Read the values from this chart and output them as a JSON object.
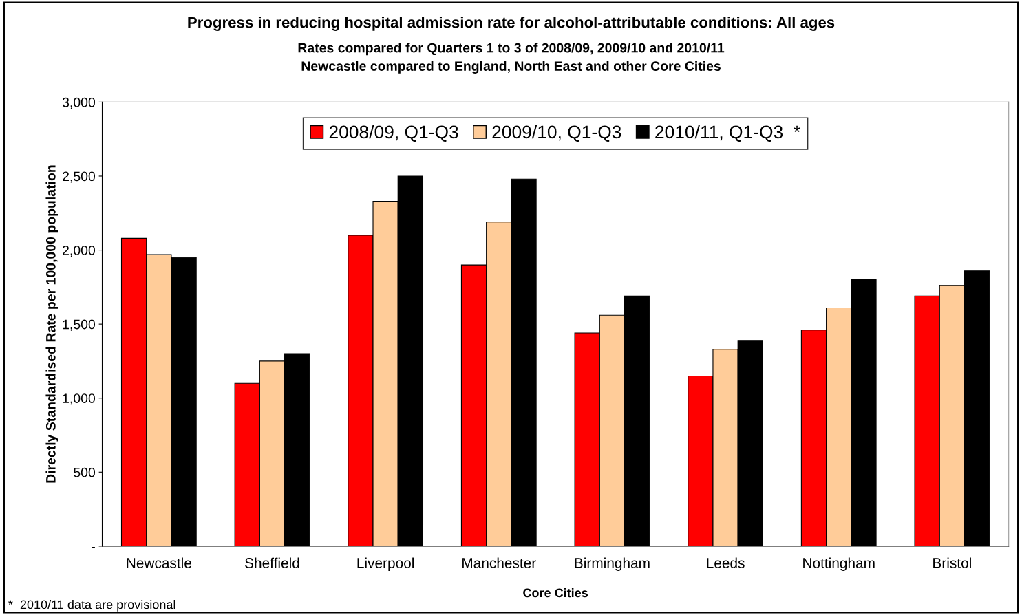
{
  "chart_data": {
    "type": "bar",
    "title": "Progress in reducing hospital admission rate for alcohol-attributable conditions: All ages",
    "subtitle": "Rates compared for Quarters 1 to 3 of 2008/09, 2009/10 and 2010/11\nNewcastle compared to England, North East and other Core Cities",
    "xlabel": "Core Cities",
    "ylabel": "Directly Standardised Rate per 100,000 population",
    "categories": [
      "Newcastle",
      "Sheffield",
      "Liverpool",
      "Manchester",
      "Birmingham",
      "Leeds",
      "Nottingham",
      "Bristol"
    ],
    "series": [
      {
        "name": "2008/09, Q1-Q3",
        "color": "#ff0000",
        "values": [
          2080,
          1100,
          2100,
          1900,
          1440,
          1150,
          1460,
          1690
        ]
      },
      {
        "name": "2009/10, Q1-Q3",
        "color": "#ffcc99",
        "values": [
          1970,
          1250,
          2330,
          2190,
          1560,
          1330,
          1610,
          1760
        ]
      },
      {
        "name": "2010/11, Q1-Q3  *",
        "color": "#000000",
        "values": [
          1950,
          1300,
          2500,
          2480,
          1690,
          1390,
          1800,
          1860
        ]
      }
    ],
    "ylim": [
      0,
      3000
    ],
    "yticks": [
      {
        "value": 0,
        "label": "-"
      },
      {
        "value": 500,
        "label": "500"
      },
      {
        "value": 1000,
        "label": "1,000"
      },
      {
        "value": 1500,
        "label": "1,500"
      },
      {
        "value": 2000,
        "label": "2,000"
      },
      {
        "value": 2500,
        "label": "2,500"
      },
      {
        "value": 3000,
        "label": "3,000"
      }
    ],
    "grid": false,
    "legend": "top",
    "annotations": [
      "*  2010/11 data are provisional"
    ]
  }
}
